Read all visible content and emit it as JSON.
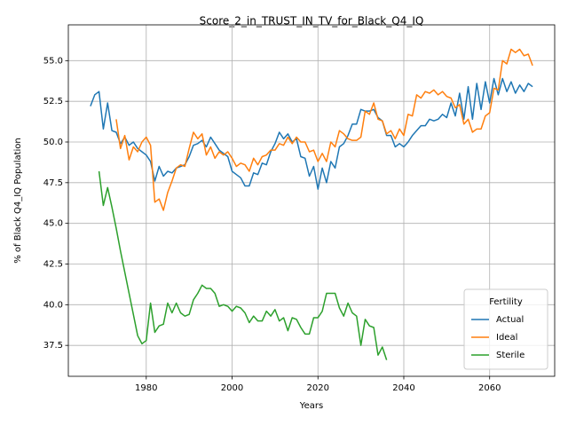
{
  "chart_data": {
    "type": "line",
    "title": "Score_2_in_TRUST_IN_TV_for_Black_Q4_IQ",
    "x_label": "Years",
    "y_label": "% of Black Q4_IQ Population",
    "x": [
      1967,
      1968,
      1969,
      1970,
      1971,
      1972,
      1973,
      1974,
      1975,
      1976,
      1977,
      1978,
      1979,
      1980,
      1981,
      1982,
      1983,
      1984,
      1985,
      1986,
      1987,
      1988,
      1989,
      1990,
      1991,
      1992,
      1993,
      1994,
      1995,
      1996,
      1997,
      1998,
      1999,
      2000,
      2001,
      2002,
      2003,
      2004,
      2005,
      2006,
      2007,
      2008,
      2009,
      2010,
      2011,
      2012,
      2013,
      2014,
      2015,
      2016,
      2017,
      2018,
      2019,
      2020,
      2021,
      2022,
      2023,
      2024,
      2025,
      2026,
      2027,
      2028,
      2029,
      2030,
      2031,
      2032,
      2033,
      2034,
      2035,
      2036,
      2037,
      2038,
      2039,
      2040,
      2041,
      2042,
      2043,
      2044,
      2045,
      2046,
      2047,
      2048,
      2049,
      2050,
      2051,
      2052,
      2053,
      2054,
      2055,
      2056,
      2057,
      2058,
      2059,
      2060,
      2061,
      2062,
      2063,
      2064,
      2065,
      2066,
      2067,
      2068,
      2069,
      2070
    ],
    "series": [
      {
        "name": "Actual",
        "color": "#1f77b4",
        "values": [
          52.2,
          52.9,
          53.1,
          50.8,
          52.4,
          50.7,
          50.6,
          49.9,
          50.3,
          49.8,
          50.0,
          49.6,
          49.4,
          49.2,
          48.8,
          47.6,
          48.5,
          47.9,
          48.2,
          48.1,
          48.4,
          48.5,
          48.6,
          49.1,
          49.8,
          49.9,
          50.1,
          49.7,
          50.3,
          49.9,
          49.5,
          49.3,
          49.1,
          48.2,
          48.0,
          47.8,
          47.3,
          47.3,
          48.1,
          48.0,
          48.7,
          48.6,
          49.4,
          49.9,
          50.6,
          50.2,
          50.5,
          50.0,
          50.2,
          49.1,
          49.0,
          47.9,
          48.5,
          47.1,
          48.4,
          47.5,
          48.8,
          48.4,
          49.7,
          49.9,
          50.4,
          51.1,
          51.1,
          52.0,
          51.9,
          51.9,
          52.0,
          51.5,
          51.3,
          50.4,
          50.4,
          49.7,
          49.9,
          49.7,
          50.0,
          50.4,
          50.7,
          51.0,
          51.0,
          51.4,
          51.3,
          51.4,
          51.7,
          51.5,
          52.4,
          51.6,
          53.0,
          51.4,
          53.4,
          51.4,
          53.6,
          52.0,
          53.7,
          52.4,
          53.9,
          52.9,
          53.9,
          53.1,
          53.7,
          53.0,
          53.5,
          53.1,
          53.6,
          53.4
        ]
      },
      {
        "name": "Ideal",
        "color": "#ff7f0e",
        "values": [
          null,
          null,
          null,
          null,
          null,
          null,
          51.4,
          49.6,
          50.4,
          48.9,
          49.7,
          49.4,
          50.0,
          50.3,
          49.8,
          46.3,
          46.5,
          45.8,
          46.9,
          47.6,
          48.4,
          48.6,
          48.5,
          49.6,
          50.6,
          50.2,
          50.5,
          49.2,
          49.7,
          49.0,
          49.4,
          49.2,
          49.4,
          49.0,
          48.5,
          48.7,
          48.6,
          48.2,
          49.0,
          48.6,
          49.1,
          49.2,
          49.5,
          49.5,
          49.9,
          49.8,
          50.3,
          49.9,
          50.3,
          50.0,
          50.0,
          49.4,
          49.5,
          48.8,
          49.3,
          48.8,
          50.0,
          49.7,
          50.7,
          50.5,
          50.2,
          50.1,
          50.1,
          50.3,
          51.9,
          51.7,
          52.4,
          51.4,
          51.3,
          50.5,
          50.7,
          50.2,
          50.8,
          50.4,
          51.7,
          51.6,
          52.9,
          52.7,
          53.1,
          53.0,
          53.2,
          52.9,
          53.1,
          52.8,
          52.7,
          52.1,
          52.3,
          51.1,
          51.4,
          50.6,
          50.8,
          50.8,
          51.6,
          51.8,
          53.3,
          53.2,
          55.0,
          54.8,
          55.7,
          55.5,
          55.7,
          55.3,
          55.4,
          54.7
        ]
      },
      {
        "name": "Sterile",
        "color": "#2ca02c",
        "values": [
          null,
          null,
          48.2,
          46.1,
          47.2,
          46.0,
          44.7,
          43.3,
          42.0,
          40.7,
          39.4,
          38.1,
          37.6,
          37.8,
          40.1,
          38.3,
          38.7,
          38.8,
          40.1,
          39.5,
          40.1,
          39.5,
          39.3,
          39.4,
          40.3,
          40.7,
          41.2,
          41.0,
          41.0,
          40.7,
          39.9,
          40.0,
          39.9,
          39.6,
          39.9,
          39.8,
          39.5,
          38.9,
          39.3,
          39.0,
          39.0,
          39.6,
          39.3,
          39.7,
          39.0,
          39.2,
          38.4,
          39.2,
          39.1,
          38.6,
          38.2,
          38.2,
          39.2,
          39.2,
          39.6,
          40.7,
          40.7,
          40.7,
          39.8,
          39.3,
          40.1,
          39.5,
          39.3,
          37.5,
          39.1,
          38.7,
          38.6,
          36.9,
          37.4,
          36.6,
          null,
          null,
          null,
          null,
          null,
          null,
          null,
          null,
          null,
          null,
          null,
          null,
          null,
          null,
          null,
          null,
          null,
          null,
          null,
          null,
          null,
          null,
          null,
          null,
          null,
          null,
          null,
          null,
          null,
          null,
          null,
          null,
          null,
          null
        ]
      }
    ],
    "xlim": [
      1961.85,
      2075.15
    ],
    "ylim": [
      35.6,
      57.2
    ],
    "xticks": [
      1980,
      2000,
      2020,
      2040,
      2060
    ],
    "yticks": [
      37.5,
      {
        "value": 40,
        "label": "40.0"
      },
      42.5,
      {
        "value": 45,
        "label": "45.0"
      },
      47.5,
      {
        "value": 50,
        "label": "50.0"
      },
      52.5,
      {
        "value": 55,
        "label": "55.0"
      }
    ],
    "grid": true,
    "legend_title": "Fertility",
    "legend_loc": "lower right"
  }
}
